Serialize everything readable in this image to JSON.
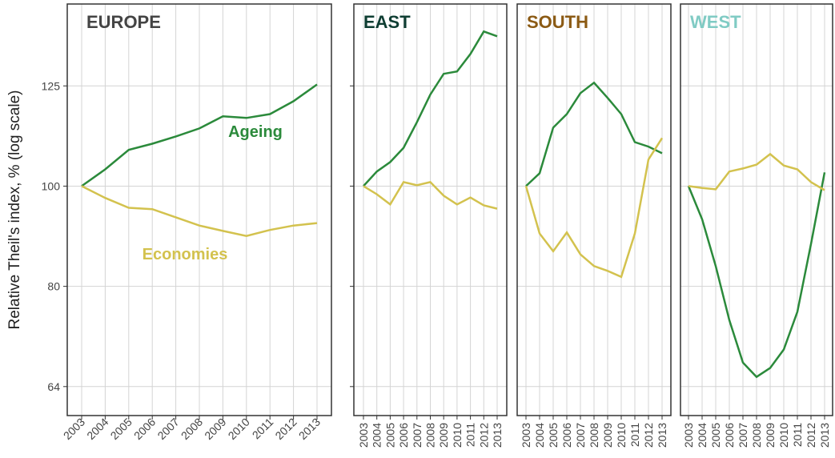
{
  "chart_data": [
    {
      "type": "line",
      "title": "EUROPE",
      "title_color": "#444444",
      "y_label": "Relative Theil's index, % (log scale)",
      "log_scale": true,
      "grid": true,
      "categories": [
        "2003",
        "2004",
        "2005",
        "2006",
        "2007",
        "2008",
        "2009",
        "2010",
        "2011",
        "2012",
        "2013"
      ],
      "series": [
        {
          "name": "Ageing",
          "color": "#2b8a3b",
          "values": [
            100,
            103.8,
            108.4,
            109.9,
            111.7,
            113.7,
            116.8,
            116.4,
            117.4,
            120.8,
            125.4
          ]
        },
        {
          "name": "Economies",
          "color": "#d3c24e",
          "values": [
            100,
            97.4,
            95.3,
            95.0,
            93.3,
            91.6,
            90.5,
            89.5,
            90.7,
            91.6,
            92.1
          ]
        }
      ],
      "ylim": [
        60,
        150
      ],
      "yticks": [
        64,
        80,
        100,
        125
      ]
    },
    {
      "type": "line",
      "title": "EAST",
      "title_color": "#0e3d32",
      "log_scale": true,
      "grid": true,
      "categories": [
        "2003",
        "2004",
        "2005",
        "2006",
        "2007",
        "2008",
        "2009",
        "2010",
        "2011",
        "2012",
        "2013"
      ],
      "series": [
        {
          "color": "#2b8a3b",
          "values": [
            100,
            103.3,
            105.5,
            108.9,
            115.3,
            122.6,
            128.4,
            129.1,
            134.2,
            141.1,
            139.6
          ]
        },
        {
          "color": "#d3c24e",
          "values": [
            100,
            98.2,
            96.0,
            100.9,
            100.2,
            100.9,
            97.9,
            96.0,
            97.5,
            95.8,
            95.1
          ]
        }
      ],
      "ylim": [
        60,
        150
      ],
      "yticks": [
        64,
        80,
        100,
        125
      ]
    },
    {
      "type": "line",
      "title": "SOUTH",
      "title_color": "#8b5a14",
      "log_scale": true,
      "grid": true,
      "categories": [
        "2003",
        "2004",
        "2005",
        "2006",
        "2007",
        "2008",
        "2009",
        "2010",
        "2011",
        "2012",
        "2013"
      ],
      "series": [
        {
          "color": "#2b8a3b",
          "values": [
            100,
            102.9,
            113.9,
            117.4,
            123.0,
            125.9,
            121.7,
            117.4,
            110.3,
            109.2,
            107.6
          ]
        },
        {
          "color": "#d3c24e",
          "values": [
            100,
            90.0,
            86.5,
            90.2,
            85.9,
            83.7,
            82.8,
            81.7,
            90.0,
            106.1,
            111.3
          ]
        }
      ],
      "ylim": [
        60,
        150
      ],
      "yticks": [
        64,
        80,
        100,
        125
      ]
    },
    {
      "type": "line",
      "title": "WEST",
      "title_color": "#80cbc4",
      "log_scale": true,
      "grid": true,
      "categories": [
        "2003",
        "2004",
        "2005",
        "2006",
        "2007",
        "2008",
        "2009",
        "2010",
        "2011",
        "2012",
        "2013"
      ],
      "series": [
        {
          "color": "#2b8a3b",
          "values": [
            100,
            92.9,
            83.7,
            74.2,
            67.5,
            65.4,
            66.7,
            69.5,
            75.6,
            87.9,
            103.1
          ]
        },
        {
          "color": "#d3c24e",
          "values": [
            100,
            99.6,
            99.3,
            103.3,
            104.0,
            104.9,
            107.4,
            104.7,
            103.8,
            100.9,
            99.1
          ]
        }
      ],
      "ylim": [
        60,
        150
      ],
      "yticks": [
        64,
        80,
        100,
        125
      ]
    }
  ]
}
